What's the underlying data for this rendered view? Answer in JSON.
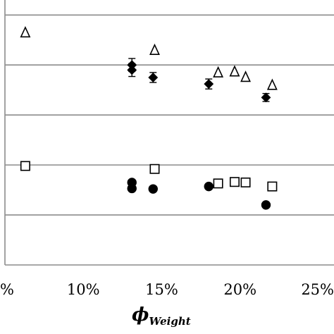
{
  "chart_data": {
    "type": "scatter",
    "title": "",
    "xlabel": {
      "symbol": "ϕ",
      "subscript": "Weight"
    },
    "ylabel": "",
    "xlim": [
      0.05,
      0.25
    ],
    "ylim": [
      0,
      5.3
    ],
    "x_tick_values": [
      0.05,
      0.1,
      0.15,
      0.2,
      0.25
    ],
    "x_tick_labels": [
      "%",
      "10%",
      "15%",
      "20%",
      "25%"
    ],
    "y_gridlines": [
      1,
      2,
      3,
      4,
      5
    ],
    "grid": "horizontal",
    "legend": "none",
    "colors": {
      "marker": "#000000",
      "grid": "#8c8c8c"
    },
    "series": [
      {
        "marker": "open-triangle",
        "points": [
          {
            "x": 0.063,
            "y": 4.65
          },
          {
            "x": 0.1455,
            "y": 4.3
          },
          {
            "x": 0.186,
            "y": 3.85
          },
          {
            "x": 0.1965,
            "y": 3.87
          },
          {
            "x": 0.2035,
            "y": 3.76
          },
          {
            "x": 0.2205,
            "y": 3.6
          }
        ]
      },
      {
        "marker": "filled-diamond",
        "points": [
          {
            "x": 0.131,
            "y": 4.0,
            "err": 0.13
          },
          {
            "x": 0.131,
            "y": 3.9,
            "err": 0.13
          },
          {
            "x": 0.1445,
            "y": 3.75,
            "err": 0.1
          },
          {
            "x": 0.18,
            "y": 3.62,
            "err": 0.1
          },
          {
            "x": 0.2165,
            "y": 3.35,
            "err": 0.08
          }
        ]
      },
      {
        "marker": "open-square",
        "points": [
          {
            "x": 0.063,
            "y": 1.98
          },
          {
            "x": 0.1455,
            "y": 1.92
          },
          {
            "x": 0.186,
            "y": 1.63
          },
          {
            "x": 0.1965,
            "y": 1.66
          },
          {
            "x": 0.2035,
            "y": 1.65
          },
          {
            "x": 0.2205,
            "y": 1.57
          }
        ]
      },
      {
        "marker": "filled-circle",
        "points": [
          {
            "x": 0.131,
            "y": 1.65
          },
          {
            "x": 0.131,
            "y": 1.53
          },
          {
            "x": 0.1445,
            "y": 1.52
          },
          {
            "x": 0.18,
            "y": 1.57
          },
          {
            "x": 0.2165,
            "y": 1.2
          }
        ]
      }
    ]
  }
}
